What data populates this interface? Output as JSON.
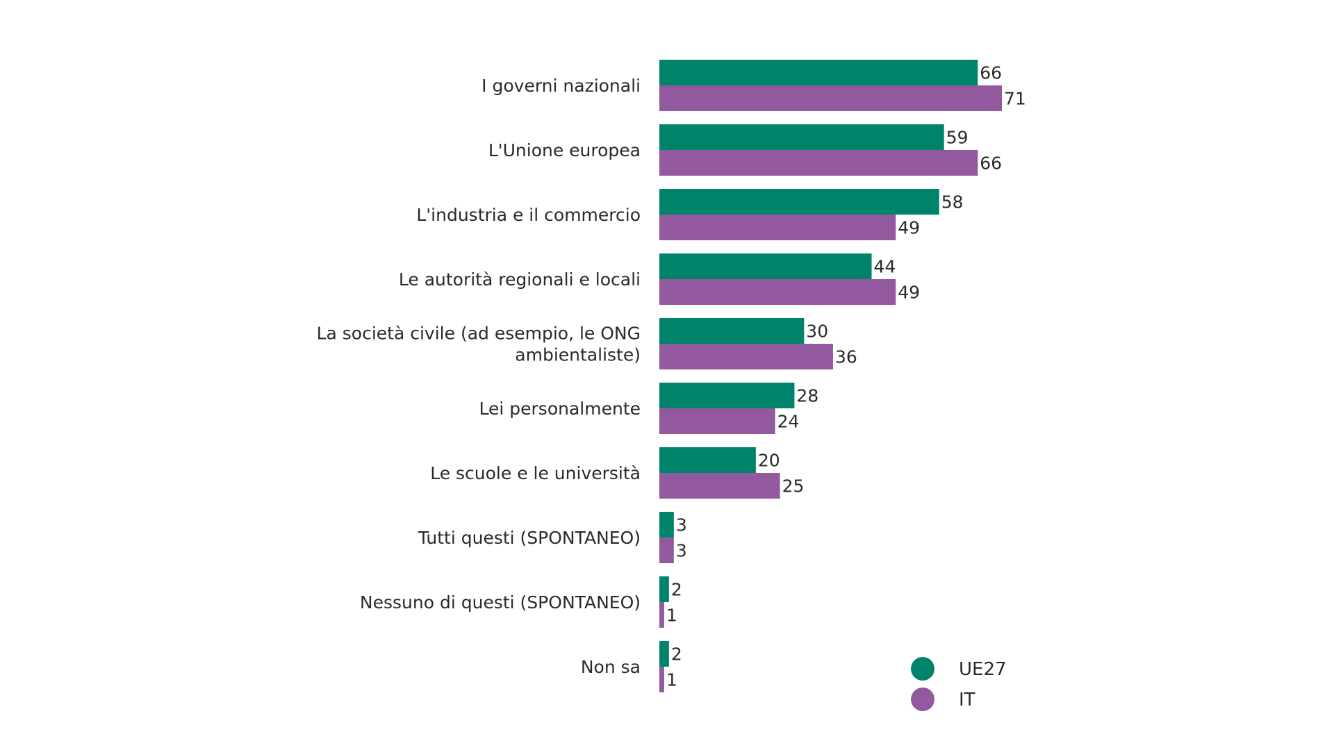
{
  "chart_data": {
    "type": "bar",
    "orientation": "horizontal",
    "categories": [
      [
        "I governi nazionali"
      ],
      [
        "L'Unione europea"
      ],
      [
        "L'industria e il commercio"
      ],
      [
        "Le autorità regionali e locali"
      ],
      [
        "La società civile (ad esempio, le ONG",
        "ambientaliste)"
      ],
      [
        "Lei personalmente"
      ],
      [
        "Le scuole e le università"
      ],
      [
        "Tutti questi (SPONTANEO)"
      ],
      [
        "Nessuno di questi (SPONTANEO)"
      ],
      [
        "Non sa"
      ]
    ],
    "series": [
      {
        "name": "UE27",
        "color": "#00836b",
        "values": [
          66,
          59,
          58,
          44,
          30,
          28,
          20,
          3,
          2,
          2
        ]
      },
      {
        "name": "IT",
        "color": "#93599f",
        "values": [
          71,
          66,
          49,
          49,
          36,
          24,
          25,
          3,
          1,
          1
        ]
      }
    ],
    "title": "",
    "xlabel": "",
    "ylabel": "",
    "xlim": [
      0,
      71
    ],
    "grid": false,
    "legend": "bottom-right"
  }
}
